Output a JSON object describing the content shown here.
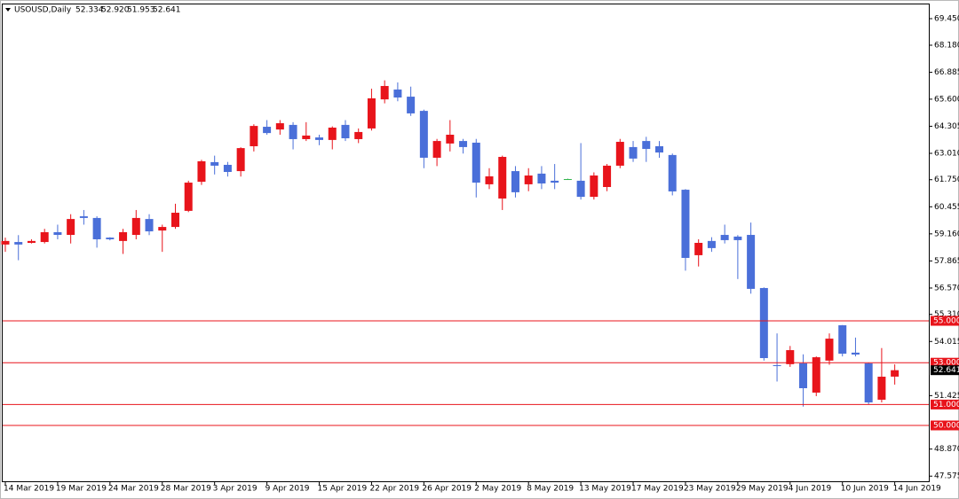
{
  "chart_data": {
    "type": "candlestick",
    "symbol": "USOUSD,Daily",
    "ohlc_labels": [
      "52.334",
      "52.920",
      "51.953",
      "52.641"
    ],
    "categories": [
      "14 Mar 2019",
      null,
      null,
      null,
      "19 Mar 2019",
      null,
      null,
      null,
      "24 Mar 2019",
      null,
      null,
      null,
      "28 Mar 2019",
      null,
      null,
      null,
      "3 Apr 2019",
      null,
      null,
      null,
      "9 Apr 2019",
      null,
      null,
      null,
      "15 Apr 2019",
      null,
      null,
      null,
      "22 Apr 2019",
      null,
      null,
      null,
      "26 Apr 2019",
      null,
      null,
      null,
      "2 May 2019",
      null,
      null,
      null,
      "8 May 2019",
      null,
      null,
      null,
      "13 May 2019",
      null,
      null,
      null,
      "17 May 2019",
      null,
      null,
      null,
      "23 May 2019",
      null,
      null,
      null,
      "29 May 2019",
      null,
      null,
      null,
      "4 Jun 2019",
      null,
      null,
      null,
      "10 Jun 2019",
      null,
      null,
      null,
      "14 Jun 2019"
    ],
    "open": [
      58.65,
      58.77,
      58.73,
      58.77,
      59.24,
      59.11,
      60.0,
      59.92,
      58.98,
      58.82,
      59.11,
      59.87,
      59.32,
      59.49,
      60.26,
      61.65,
      62.59,
      62.46,
      62.16,
      63.35,
      64.28,
      64.15,
      64.37,
      63.69,
      63.77,
      63.65,
      64.37,
      63.69,
      64.2,
      65.59,
      66.06,
      65.72,
      65.04,
      62.8,
      63.48,
      63.6,
      63.52,
      61.53,
      60.85,
      62.16,
      61.53,
      62.04,
      61.7,
      61.78,
      61.7,
      60.93,
      61.4,
      62.42,
      63.31,
      63.6,
      63.35,
      62.93,
      61.27,
      58.14,
      58.82,
      59.11,
      59.03,
      59.11,
      56.57,
      52.88,
      52.93,
      52.97,
      51.57,
      53.1,
      54.79,
      53.48,
      52.97,
      51.23,
      52.334
    ],
    "high": [
      58.98,
      59.1,
      58.9,
      59.4,
      59.6,
      60.1,
      60.3,
      60.0,
      59.0,
      59.4,
      60.3,
      60.1,
      59.6,
      60.6,
      61.7,
      62.7,
      62.9,
      62.6,
      63.3,
      64.4,
      64.6,
      64.6,
      64.5,
      64.5,
      63.9,
      64.3,
      64.6,
      64.2,
      66.1,
      66.5,
      66.4,
      66.2,
      65.1,
      63.7,
      64.6,
      63.7,
      63.7,
      62.3,
      62.9,
      62.4,
      62.3,
      62.4,
      62.5,
      61.8,
      63.5,
      62.1,
      62.5,
      63.7,
      63.6,
      63.8,
      63.6,
      63.0,
      61.3,
      58.9,
      59.0,
      59.6,
      59.1,
      59.7,
      56.6,
      54.4,
      53.8,
      53.4,
      53.3,
      54.4,
      54.8,
      54.2,
      53.0,
      53.7,
      52.92
    ],
    "low": [
      58.3,
      57.9,
      58.7,
      58.7,
      58.9,
      58.7,
      59.6,
      58.5,
      58.85,
      58.2,
      58.9,
      59.1,
      58.3,
      59.4,
      60.2,
      61.5,
      62.0,
      61.9,
      61.9,
      63.1,
      63.9,
      63.9,
      63.2,
      63.6,
      63.4,
      63.2,
      63.6,
      63.5,
      64.1,
      65.4,
      65.5,
      64.8,
      62.3,
      62.4,
      63.1,
      63.0,
      60.9,
      61.3,
      60.3,
      60.9,
      61.2,
      61.3,
      61.3,
      61.76,
      60.8,
      60.8,
      61.2,
      62.3,
      62.6,
      62.6,
      62.8,
      61.0,
      57.4,
      57.6,
      58.3,
      58.7,
      57.0,
      56.3,
      53.1,
      52.1,
      52.8,
      50.9,
      51.4,
      52.9,
      53.3,
      53.3,
      51.0,
      51.1,
      51.953
    ],
    "close": [
      58.82,
      58.65,
      58.82,
      59.24,
      59.11,
      59.87,
      59.92,
      58.9,
      58.9,
      59.24,
      59.92,
      59.28,
      59.49,
      60.17,
      61.61,
      62.63,
      62.42,
      62.12,
      63.26,
      64.32,
      63.98,
      64.45,
      63.69,
      63.86,
      63.65,
      64.24,
      63.73,
      64.03,
      65.64,
      66.23,
      65.68,
      64.92,
      62.8,
      63.6,
      63.9,
      63.31,
      61.61,
      61.91,
      62.84,
      61.15,
      61.95,
      61.57,
      61.61,
      61.78,
      60.93,
      61.95,
      62.42,
      63.56,
      62.76,
      63.22,
      63.05,
      61.19,
      58.01,
      58.73,
      58.48,
      58.86,
      58.86,
      56.53,
      53.22,
      52.84,
      53.6,
      51.78,
      53.26,
      54.15,
      53.43,
      53.39,
      51.1,
      52.33,
      52.641
    ],
    "up_color": "#e8141b",
    "down_color": "#4a6fd9",
    "doji_color": "#2db34a",
    "level_color": "#e8141b",
    "levels": [
      {
        "value": 55,
        "label": "55.000"
      },
      {
        "value": 53,
        "label": "53.000"
      },
      {
        "value": 51,
        "label": "51.000"
      },
      {
        "value": 50,
        "label": "50.000"
      }
    ],
    "ylim": [
      47.33,
      70.13
    ],
    "yticks": [
      {
        "value": 69.45,
        "label": "69.450"
      },
      {
        "value": 68.18,
        "label": "68.180"
      },
      {
        "value": 66.885,
        "label": "66.885"
      },
      {
        "value": 65.6,
        "label": "65.600"
      },
      {
        "value": 64.305,
        "label": "64.305"
      },
      {
        "value": 63.01,
        "label": "63.010"
      },
      {
        "value": 61.75,
        "label": "61.750"
      },
      {
        "value": 60.455,
        "label": "60.455"
      },
      {
        "value": 59.16,
        "label": "59.160"
      },
      {
        "value": 57.865,
        "label": "57.865"
      },
      {
        "value": 56.57,
        "label": "56.570"
      },
      {
        "value": 55.31,
        "label": "55.310"
      },
      {
        "value": 54.015,
        "label": "54.015"
      },
      {
        "value": 51.425,
        "label": "51.425"
      },
      {
        "value": 48.87,
        "label": "48.870"
      },
      {
        "value": 47.575,
        "label": "47.575"
      }
    ]
  }
}
